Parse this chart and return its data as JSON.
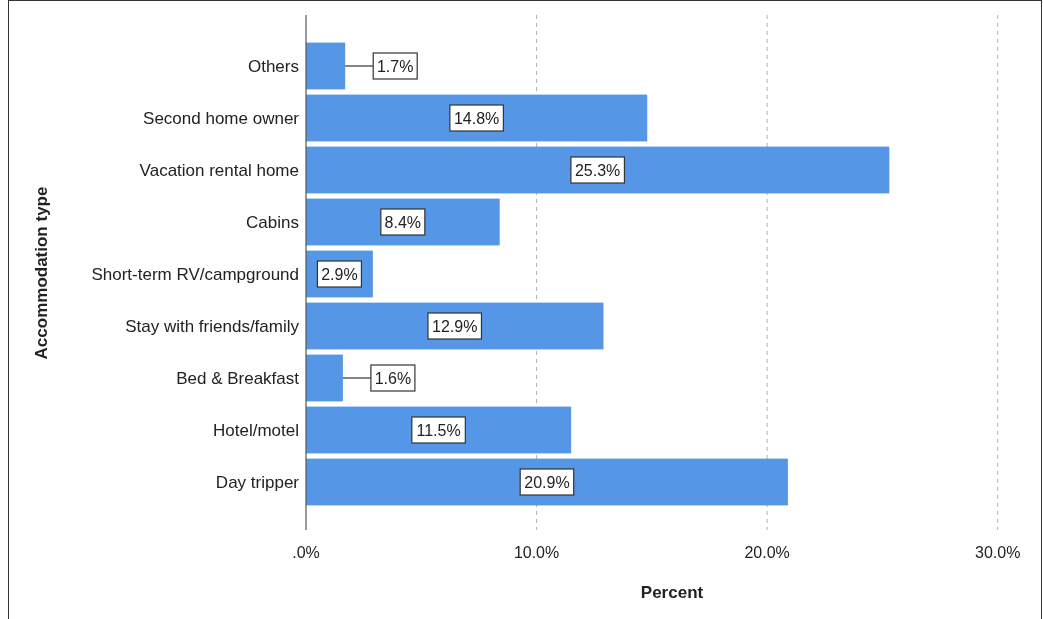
{
  "chart_data": {
    "type": "bar",
    "orientation": "horizontal",
    "xlabel": "Percent",
    "ylabel": "Accommodation type",
    "categories": [
      "Others",
      "Second home owner",
      "Vacation rental home",
      "Cabins",
      "Short-term RV/campground",
      "Stay with friends/family",
      "Bed & Breakfast",
      "Hotel/motel",
      "Day tripper"
    ],
    "values": [
      1.7,
      14.8,
      25.3,
      8.4,
      2.9,
      12.9,
      1.6,
      11.5,
      20.9
    ],
    "value_labels": [
      "1.7%",
      "14.8%",
      "25.3%",
      "8.4%",
      "2.9%",
      "12.9%",
      "1.6%",
      "11.5%",
      "20.9%"
    ],
    "color": "#5596e6",
    "xlim": [
      0,
      30.1
    ],
    "xticks": [
      {
        "value": 0,
        "label": ".0%"
      },
      {
        "value": 10,
        "label": "10.0%"
      },
      {
        "value": 20,
        "label": "20.0%"
      },
      {
        "value": 30,
        "label": "30.0%"
      }
    ],
    "grid": "x"
  }
}
